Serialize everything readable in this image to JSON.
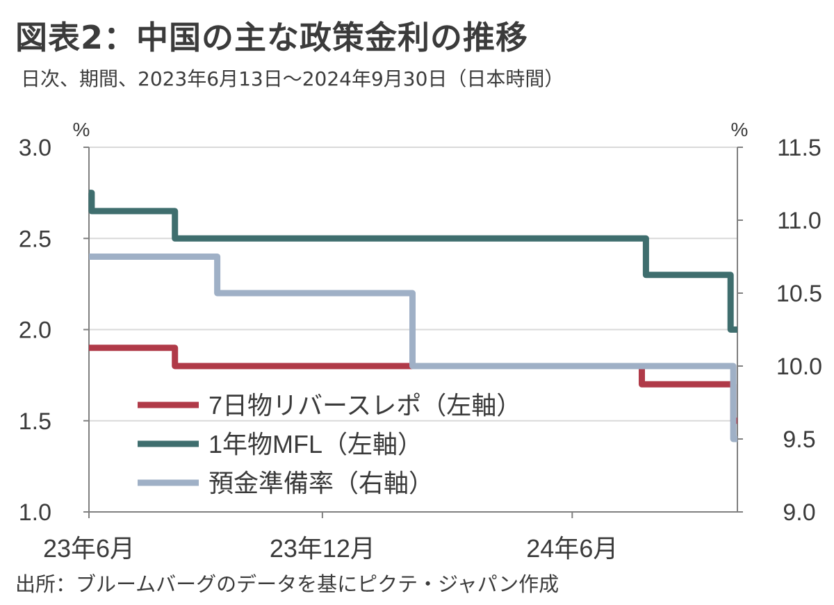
{
  "title": "図表2：中国の主な政策金利の推移",
  "subtitle": "日次、期間、2023年6月13日～2024年9月30日（日本時間）",
  "source": "出所：ブルームバーグのデータを基にピクテ・ジャパン作成",
  "colors": {
    "repo": "#b03a48",
    "mlf": "#3f6e6e",
    "rrr": "#9fb0c6",
    "grid": "#d9d9d9",
    "axis": "#7f7f7f",
    "text": "#3a3a3a"
  },
  "chart_data": {
    "type": "line",
    "x_range": [
      "2023-06-13",
      "2024-09-30"
    ],
    "x_tick_labels": [
      "23年6月",
      "23年12月",
      "24年6月"
    ],
    "left_axis": {
      "unit": "%",
      "ylim": [
        1.0,
        3.0
      ],
      "ticks": [
        "1.0",
        "1.5",
        "2.0",
        "2.5",
        "3.0"
      ]
    },
    "right_axis": {
      "unit": "%",
      "ylim": [
        9.0,
        11.5
      ],
      "ticks": [
        "9.0",
        "9.5",
        "10.0",
        "10.5",
        "11.0",
        "11.5"
      ]
    },
    "grid": true,
    "legend_position": "bottom-left",
    "series": [
      {
        "name": "7日物リバースレポ（左軸）",
        "key": "repo",
        "axis": "left",
        "points": [
          [
            "2023-06-13",
            1.9
          ],
          [
            "2023-08-15",
            1.9
          ],
          [
            "2023-08-15",
            1.8
          ],
          [
            "2024-07-22",
            1.8
          ],
          [
            "2024-07-22",
            1.7
          ],
          [
            "2024-09-27",
            1.7
          ],
          [
            "2024-09-27",
            1.5
          ],
          [
            "2024-09-30",
            1.5
          ]
        ]
      },
      {
        "name": "1年物MFL（左軸）",
        "key": "mlf",
        "axis": "left",
        "points": [
          [
            "2023-06-13",
            2.75
          ],
          [
            "2023-06-15",
            2.75
          ],
          [
            "2023-06-15",
            2.65
          ],
          [
            "2023-08-15",
            2.65
          ],
          [
            "2023-08-15",
            2.5
          ],
          [
            "2024-07-25",
            2.5
          ],
          [
            "2024-07-25",
            2.3
          ],
          [
            "2024-09-25",
            2.3
          ],
          [
            "2024-09-25",
            2.0
          ],
          [
            "2024-09-30",
            2.0
          ]
        ]
      },
      {
        "name": "預金準備率（右軸）",
        "key": "rrr",
        "axis": "right",
        "points": [
          [
            "2023-06-13",
            10.75
          ],
          [
            "2023-09-15",
            10.75
          ],
          [
            "2023-09-15",
            10.5
          ],
          [
            "2024-02-05",
            10.5
          ],
          [
            "2024-02-05",
            10.0
          ],
          [
            "2024-09-27",
            10.0
          ],
          [
            "2024-09-27",
            9.5
          ],
          [
            "2024-09-30",
            9.5
          ]
        ]
      }
    ]
  }
}
